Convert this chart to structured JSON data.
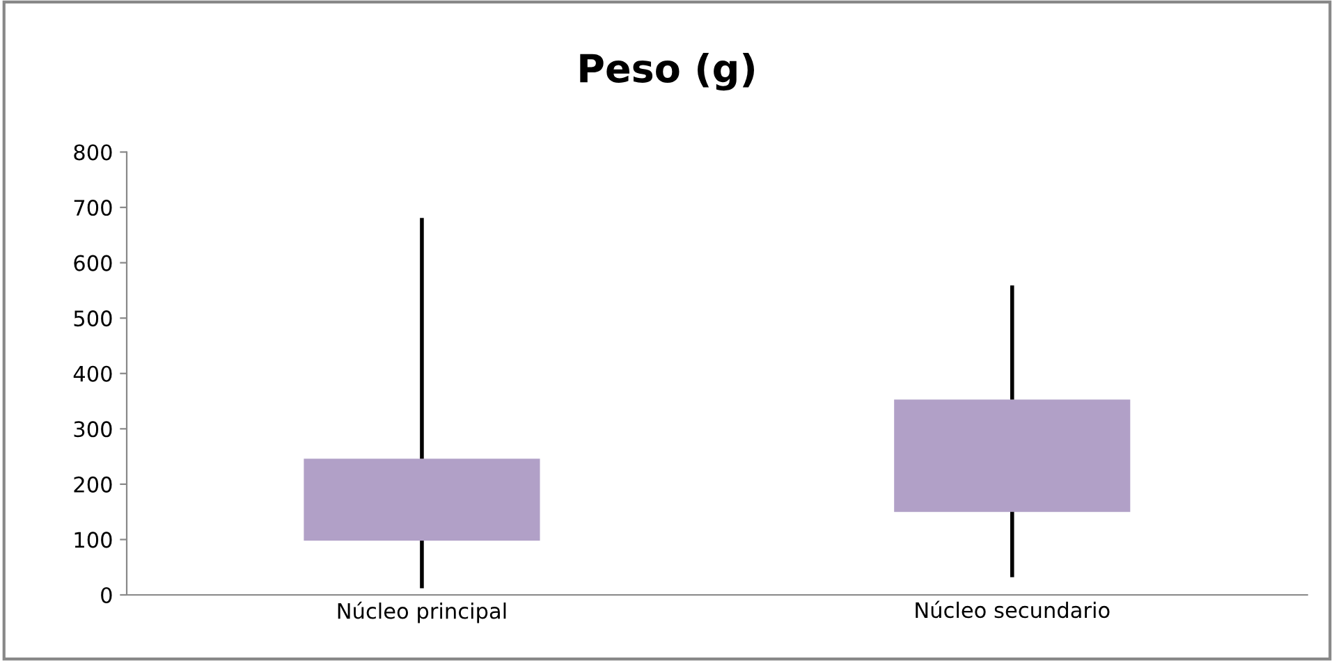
{
  "chart_data": {
    "type": "bar",
    "title": "Peso (g)",
    "categories": [
      "Núcleo principal",
      "Núcleo secundario"
    ],
    "base": [
      98,
      150
    ],
    "values": [
      148,
      203
    ],
    "errors": [
      [
        12,
        681
      ],
      [
        32,
        559
      ]
    ],
    "color": "#b1a0c7",
    "ylim": [
      0,
      800
    ],
    "yticks": [
      0,
      100,
      200,
      300,
      400,
      500,
      600,
      700,
      800
    ],
    "grid": false,
    "legend": false
  }
}
